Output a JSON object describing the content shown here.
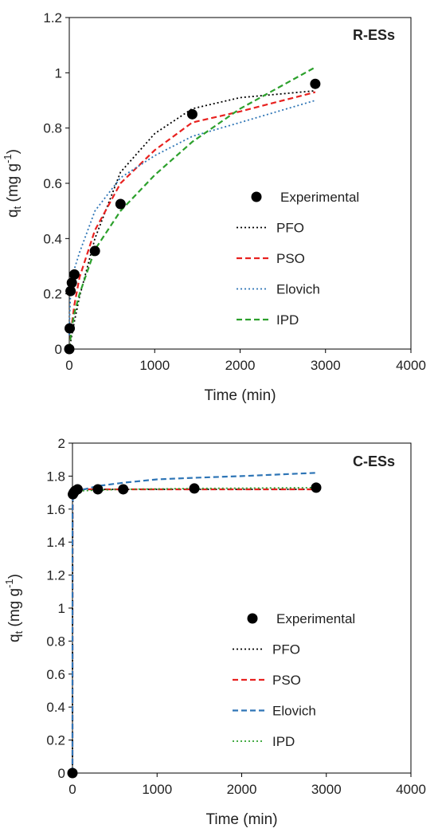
{
  "chart_data": [
    {
      "type": "line",
      "panel_label": "R-ESs",
      "xlabel": "Time (min)",
      "ylabel": {
        "main": "q",
        "sub": "t",
        "unit_open": " (mg g",
        "unit_sup": "-1",
        "unit_close": ")"
      },
      "xlim": [
        0,
        4000
      ],
      "ylim": [
        0,
        1.2
      ],
      "xticks": [
        0,
        1000,
        2000,
        3000,
        4000
      ],
      "yticks": [
        0,
        0.2,
        0.4,
        0.6,
        0.8,
        1,
        1.2
      ],
      "legend_position": "center-right",
      "experimental": {
        "name": "Experimental",
        "color": "#000000",
        "x": [
          0,
          5,
          15,
          30,
          60,
          300,
          600,
          1440,
          2880
        ],
        "y": [
          0,
          0.075,
          0.21,
          0.24,
          0.27,
          0.355,
          0.525,
          0.85,
          0.96
        ]
      },
      "series": [
        {
          "name": "PFO",
          "color": "#000000",
          "dash": "dotted",
          "x": [
            0,
            30,
            60,
            120,
            300,
            600,
            1000,
            1440,
            2000,
            2880
          ],
          "y": [
            0,
            0.05,
            0.1,
            0.19,
            0.4,
            0.64,
            0.78,
            0.87,
            0.91,
            0.935
          ]
        },
        {
          "name": "PSO",
          "color": "#e8211f",
          "dash": "dashed",
          "x": [
            0,
            30,
            60,
            120,
            300,
            600,
            1000,
            1440,
            2000,
            2880
          ],
          "y": [
            0,
            0.09,
            0.16,
            0.26,
            0.43,
            0.6,
            0.72,
            0.82,
            0.86,
            0.93
          ]
        },
        {
          "name": "Elovich",
          "color": "#2e75b6",
          "dash": "dotted",
          "x": [
            0,
            5,
            15,
            30,
            60,
            120,
            300,
            600,
            1000,
            1440,
            2000,
            2880
          ],
          "y": [
            0.05,
            0.13,
            0.2,
            0.24,
            0.29,
            0.35,
            0.5,
            0.62,
            0.7,
            0.77,
            0.82,
            0.9
          ]
        },
        {
          "name": "IPD",
          "color": "#2ca02c",
          "dash": "dashed",
          "x": [
            0,
            30,
            60,
            120,
            300,
            600,
            1000,
            1440,
            2000,
            2880
          ],
          "y": [
            0,
            0.08,
            0.13,
            0.2,
            0.36,
            0.5,
            0.63,
            0.75,
            0.87,
            1.02
          ]
        }
      ]
    },
    {
      "type": "line",
      "panel_label": "C-ESs",
      "xlabel": "Time (min)",
      "ylabel": {
        "main": "q",
        "sub": "t",
        "unit_open": " (mg g",
        "unit_sup": "-1",
        "unit_close": ")"
      },
      "xlim": [
        0,
        4000
      ],
      "ylim": [
        0,
        2
      ],
      "xticks": [
        0,
        1000,
        2000,
        3000,
        4000
      ],
      "yticks": [
        0,
        0.2,
        0.4,
        0.6,
        0.8,
        1,
        1.2,
        1.4,
        1.6,
        1.8,
        2
      ],
      "legend_position": "center-right",
      "experimental": {
        "name": "Experimental",
        "color": "#000000",
        "x": [
          0,
          5,
          15,
          30,
          60,
          300,
          600,
          1440,
          2880
        ],
        "y": [
          0,
          1.69,
          1.7,
          1.71,
          1.72,
          1.72,
          1.72,
          1.725,
          1.73
        ]
      },
      "series": [
        {
          "name": "PFO",
          "color": "#000000",
          "dash": "dotted",
          "x": [
            0,
            2,
            5,
            15,
            60,
            300,
            600,
            1440,
            2880
          ],
          "y": [
            0,
            1.5,
            1.72,
            1.72,
            1.72,
            1.72,
            1.72,
            1.72,
            1.72
          ]
        },
        {
          "name": "PSO",
          "color": "#e8211f",
          "dash": "dashed",
          "x": [
            0,
            2,
            5,
            15,
            60,
            300,
            600,
            1440,
            2880
          ],
          "y": [
            0,
            1.55,
            1.71,
            1.72,
            1.72,
            1.72,
            1.72,
            1.72,
            1.72
          ]
        },
        {
          "name": "Elovich",
          "color": "#2e75b6",
          "dash": "dashed",
          "x": [
            0,
            1,
            5,
            15,
            60,
            300,
            600,
            1000,
            1440,
            2000,
            2880
          ],
          "y": [
            0,
            1.6,
            1.67,
            1.69,
            1.71,
            1.74,
            1.76,
            1.78,
            1.79,
            1.8,
            1.82
          ]
        },
        {
          "name": "IPD",
          "color": "#2ca02c",
          "dash": "dotted",
          "x": [
            0,
            5,
            15,
            60,
            300,
            600,
            1440,
            2880
          ],
          "y": [
            1.69,
            1.7,
            1.705,
            1.71,
            1.715,
            1.72,
            1.725,
            1.73
          ]
        }
      ]
    }
  ]
}
